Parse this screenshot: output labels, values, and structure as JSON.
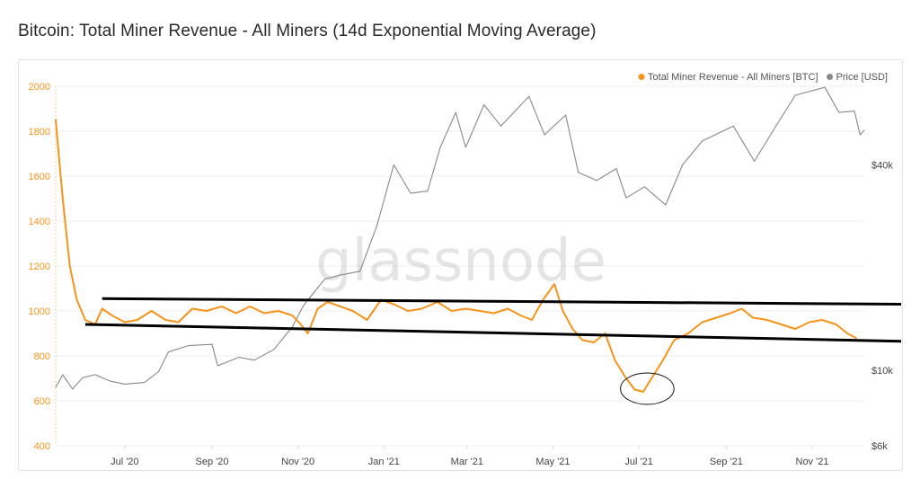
{
  "chart_data": {
    "type": "line",
    "title": "Bitcoin: Total Miner Revenue - All Miners (14d Exponential Moving Average)",
    "watermark": "glassnode",
    "legend": {
      "placement": "top-right",
      "items": [
        {
          "name": "Total Miner Revenue - All Miners [BTC]",
          "color": "#f7931a"
        },
        {
          "name": "Price [USD]",
          "color": "#888888"
        }
      ]
    },
    "x_ticks": [
      "Jul '20",
      "Sep '20",
      "Nov '20",
      "Jan '21",
      "Mar '21",
      "May '21",
      "Jul '21",
      "Sep '21",
      "Nov '21"
    ],
    "x_tick_dates": [
      "2020-07-01",
      "2020-09-01",
      "2020-11-01",
      "2021-01-01",
      "2021-03-01",
      "2021-05-01",
      "2021-07-01",
      "2021-09-01",
      "2021-11-01"
    ],
    "xlim": [
      "2020-05-13",
      "2021-12-08"
    ],
    "y_left": {
      "ticks": [
        "400",
        "600",
        "800",
        "1000",
        "1200",
        "1400",
        "1600",
        "1800",
        "2000"
      ],
      "ylim": [
        400,
        2000
      ],
      "color": "#f7931a"
    },
    "y_right": {
      "ticks": [
        "$6k",
        "$10k",
        "$40k"
      ],
      "tick_values": [
        6000,
        10000,
        40000
      ],
      "scale": "log",
      "ylim": [
        6000,
        68000
      ]
    },
    "series": [
      {
        "name": "Total Miner Revenue - All Miners [BTC]",
        "axis": "left",
        "color": "#f7931a",
        "points": [
          [
            "2020-05-13",
            1850
          ],
          [
            "2020-05-18",
            1500
          ],
          [
            "2020-05-23",
            1200
          ],
          [
            "2020-05-28",
            1050
          ],
          [
            "2020-06-03",
            960
          ],
          [
            "2020-06-10",
            940
          ],
          [
            "2020-06-15",
            1010
          ],
          [
            "2020-06-22",
            980
          ],
          [
            "2020-07-01",
            950
          ],
          [
            "2020-07-10",
            960
          ],
          [
            "2020-07-20",
            1000
          ],
          [
            "2020-07-30",
            960
          ],
          [
            "2020-08-08",
            950
          ],
          [
            "2020-08-18",
            1010
          ],
          [
            "2020-08-28",
            1000
          ],
          [
            "2020-09-08",
            1020
          ],
          [
            "2020-09-18",
            990
          ],
          [
            "2020-09-28",
            1020
          ],
          [
            "2020-10-08",
            990
          ],
          [
            "2020-10-18",
            1000
          ],
          [
            "2020-10-28",
            980
          ],
          [
            "2020-11-03",
            940
          ],
          [
            "2020-11-08",
            900
          ],
          [
            "2020-11-15",
            1010
          ],
          [
            "2020-11-22",
            1040
          ],
          [
            "2020-12-01",
            1020
          ],
          [
            "2020-12-10",
            1000
          ],
          [
            "2020-12-20",
            960
          ],
          [
            "2020-12-30",
            1050
          ],
          [
            "2021-01-08",
            1030
          ],
          [
            "2021-01-18",
            1000
          ],
          [
            "2021-01-28",
            1010
          ],
          [
            "2021-02-08",
            1040
          ],
          [
            "2021-02-18",
            1000
          ],
          [
            "2021-02-28",
            1010
          ],
          [
            "2021-03-10",
            1000
          ],
          [
            "2021-03-20",
            990
          ],
          [
            "2021-03-30",
            1010
          ],
          [
            "2021-04-08",
            980
          ],
          [
            "2021-04-16",
            960
          ],
          [
            "2021-04-24",
            1050
          ],
          [
            "2021-05-02",
            1120
          ],
          [
            "2021-05-08",
            1000
          ],
          [
            "2021-05-15",
            920
          ],
          [
            "2021-05-22",
            870
          ],
          [
            "2021-05-30",
            860
          ],
          [
            "2021-06-07",
            900
          ],
          [
            "2021-06-14",
            780
          ],
          [
            "2021-06-22",
            700
          ],
          [
            "2021-06-28",
            650
          ],
          [
            "2021-07-04",
            640
          ],
          [
            "2021-07-10",
            700
          ],
          [
            "2021-07-18",
            780
          ],
          [
            "2021-07-26",
            870
          ],
          [
            "2021-08-05",
            900
          ],
          [
            "2021-08-15",
            950
          ],
          [
            "2021-08-25",
            970
          ],
          [
            "2021-09-04",
            990
          ],
          [
            "2021-09-12",
            1010
          ],
          [
            "2021-09-20",
            970
          ],
          [
            "2021-09-30",
            960
          ],
          [
            "2021-10-10",
            940
          ],
          [
            "2021-10-20",
            920
          ],
          [
            "2021-10-30",
            950
          ],
          [
            "2021-11-08",
            960
          ],
          [
            "2021-11-18",
            940
          ],
          [
            "2021-11-26",
            900
          ],
          [
            "2021-12-02",
            880
          ]
        ]
      },
      {
        "name": "Price [USD]",
        "axis": "right",
        "color": "#888888",
        "points": [
          [
            "2020-05-13",
            8900
          ],
          [
            "2020-05-18",
            9700
          ],
          [
            "2020-05-25",
            8800
          ],
          [
            "2020-06-01",
            9500
          ],
          [
            "2020-06-10",
            9700
          ],
          [
            "2020-06-20",
            9300
          ],
          [
            "2020-07-01",
            9100
          ],
          [
            "2020-07-15",
            9200
          ],
          [
            "2020-07-25",
            9900
          ],
          [
            "2020-08-01",
            11300
          ],
          [
            "2020-08-15",
            11800
          ],
          [
            "2020-09-01",
            11900
          ],
          [
            "2020-09-05",
            10300
          ],
          [
            "2020-09-20",
            10900
          ],
          [
            "2020-10-01",
            10700
          ],
          [
            "2020-10-15",
            11500
          ],
          [
            "2020-10-28",
            13400
          ],
          [
            "2020-11-05",
            15500
          ],
          [
            "2020-11-20",
            18500
          ],
          [
            "2020-12-01",
            19000
          ],
          [
            "2020-12-15",
            19500
          ],
          [
            "2020-12-27",
            26500
          ],
          [
            "2021-01-08",
            40000
          ],
          [
            "2021-01-20",
            33000
          ],
          [
            "2021-02-01",
            33500
          ],
          [
            "2021-02-10",
            45000
          ],
          [
            "2021-02-21",
            57000
          ],
          [
            "2021-02-28",
            45000
          ],
          [
            "2021-03-13",
            60000
          ],
          [
            "2021-03-25",
            52000
          ],
          [
            "2021-04-14",
            63500
          ],
          [
            "2021-04-25",
            49000
          ],
          [
            "2021-05-10",
            56000
          ],
          [
            "2021-05-19",
            38000
          ],
          [
            "2021-06-01",
            36000
          ],
          [
            "2021-06-15",
            39000
          ],
          [
            "2021-06-22",
            32000
          ],
          [
            "2021-07-05",
            34500
          ],
          [
            "2021-07-20",
            30500
          ],
          [
            "2021-08-01",
            40000
          ],
          [
            "2021-08-15",
            47000
          ],
          [
            "2021-09-06",
            52000
          ],
          [
            "2021-09-21",
            41000
          ],
          [
            "2021-10-05",
            51000
          ],
          [
            "2021-10-20",
            64000
          ],
          [
            "2021-11-10",
            67500
          ],
          [
            "2021-11-20",
            57000
          ],
          [
            "2021-12-01",
            57500
          ],
          [
            "2021-12-05",
            49000
          ],
          [
            "2021-12-08",
            50500
          ]
        ]
      }
    ],
    "annotations": {
      "trendlines": [
        {
          "points": [
            [
              "2020-06-15",
              1055
            ],
            [
              "2021-12-08",
              1030
            ]
          ]
        },
        {
          "points": [
            [
              "2020-06-03",
              940
            ],
            [
              "2021-12-08",
              865
            ]
          ]
        }
      ],
      "ellipse": {
        "center": [
          "2021-07-05",
          650
        ],
        "rx_days": 19,
        "ry_value": 70
      }
    }
  }
}
